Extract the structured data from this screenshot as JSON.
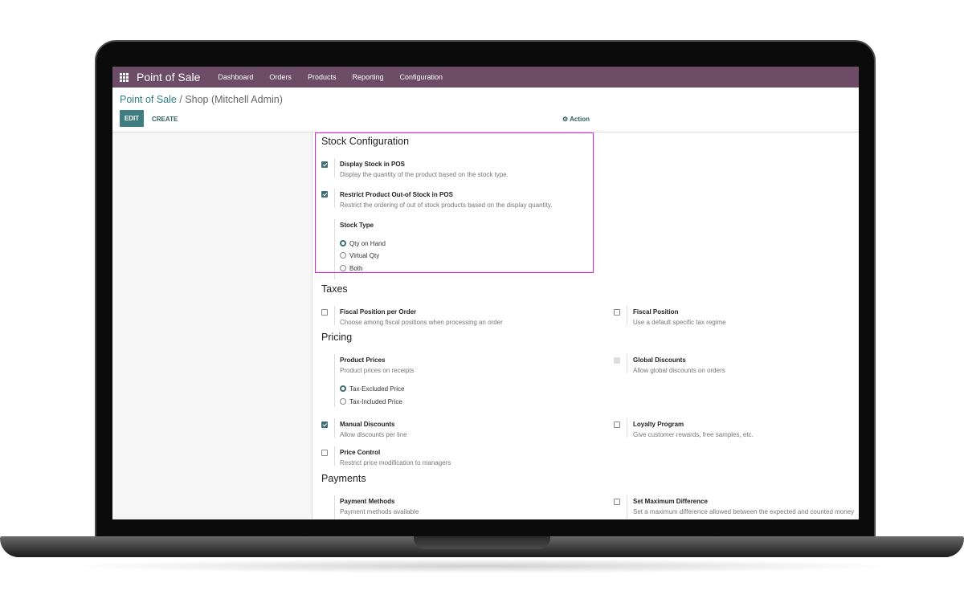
{
  "navbar": {
    "app_title": "Point of Sale",
    "menu": [
      "Dashboard",
      "Orders",
      "Products",
      "Reporting",
      "Configuration"
    ]
  },
  "breadcrumb": {
    "parent": "Point of Sale",
    "current": "/ Shop (Mitchell Admin)"
  },
  "toolbar": {
    "edit": "EDIT",
    "create": "CREATE",
    "action": "⚙ Action"
  },
  "sections": {
    "stock": {
      "title": "Stock Configuration",
      "display_stock": {
        "label": "Display Stock in POS",
        "desc": "Display the quantity of the product based on the stock type.",
        "checked": true
      },
      "restrict": {
        "label": "Restrict Product Out-of Stock in POS",
        "desc": "Restrict the ordering of out of stock products based on the display quantity.",
        "checked": true
      },
      "stock_type": {
        "label": "Stock Type",
        "options": [
          "Qty on Hand",
          "Virtual Qty",
          "Both"
        ],
        "selected": "Qty on Hand"
      }
    },
    "taxes": {
      "title": "Taxes",
      "fpo": {
        "label": "Fiscal Position per Order",
        "desc": "Choose among fiscal positions when processing an order",
        "checked": false
      },
      "fp": {
        "label": "Fiscal Position",
        "desc": "Use a default specific tax regime",
        "checked": false
      }
    },
    "pricing": {
      "title": "Pricing",
      "product_prices": {
        "label": "Product Prices",
        "desc": "Product prices on receipts",
        "options": [
          "Tax-Excluded Price",
          "Tax-Included Price"
        ],
        "selected": "Tax-Excluded Price"
      },
      "global_discounts": {
        "label": "Global Discounts",
        "desc": "Allow global discounts on orders",
        "checked": false,
        "disabled": true
      },
      "manual_discounts": {
        "label": "Manual Discounts",
        "desc": "Allow discounts per line",
        "checked": true
      },
      "loyalty": {
        "label": "Loyalty Program",
        "desc": "Give customer rewards, free samples, etc.",
        "checked": false
      },
      "price_control": {
        "label": "Price Control",
        "desc": "Restrict price modification to managers",
        "checked": false
      }
    },
    "payments": {
      "title": "Payments",
      "methods": {
        "label": "Payment Methods",
        "desc": "Payment methods available"
      },
      "max_diff": {
        "label": "Set Maximum Difference",
        "desc": "Set a maximum difference allowed between the expected and counted money",
        "checked": false
      }
    }
  },
  "colors": {
    "navbar": "#6c4c66",
    "accent": "#3f7d80",
    "highlight": "#e020e0"
  }
}
